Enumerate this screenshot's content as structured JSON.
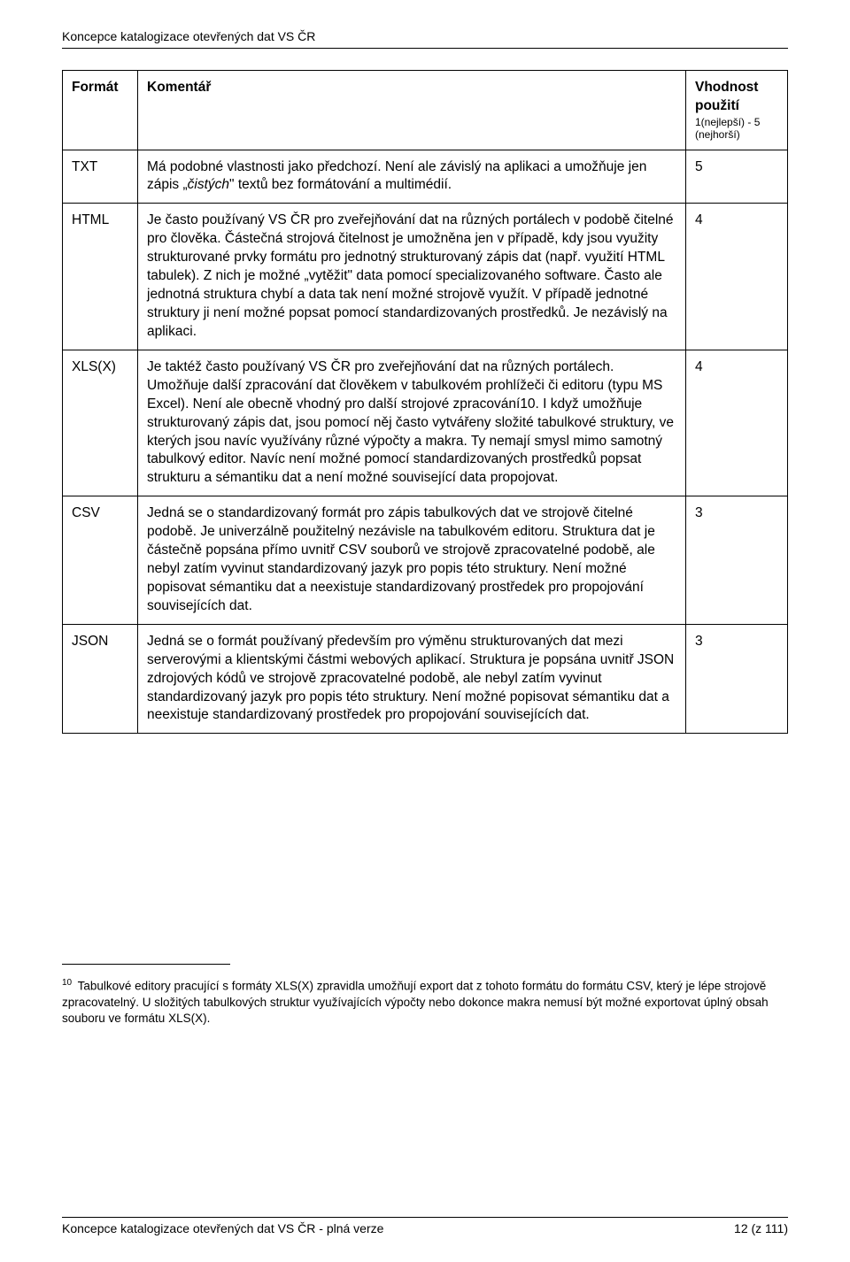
{
  "doc": {
    "header": "Koncepce katalogizace otevřených dat VS ČR",
    "footer_left": "Koncepce katalogizace otevřených dat VS ČR - plná verze",
    "footer_right": "12 (z 111)"
  },
  "table": {
    "headers": {
      "format": "Formát",
      "comment": "Komentář",
      "rating_title": "Vhodnost použití",
      "rating_sub1": "1(nejlepší) - 5",
      "rating_sub2": "(nejhorší)"
    },
    "rows": [
      {
        "format": "TXT",
        "comment_pre": "Má podobné vlastnosti jako předchozí. Není ale závislý na aplikaci a umožňuje jen zápis „",
        "comment_italic": "čistých",
        "comment_post": "\" textů bez formátování a multimédií.",
        "rating": "5"
      },
      {
        "format": "HTML",
        "comment": "Je často používaný VS ČR pro zveřejňování dat na různých portálech v podobě čitelné pro člověka. Částečná strojová čitelnost je umožněna jen v případě, kdy jsou využity strukturované prvky formátu pro jednotný strukturovaný zápis dat (např. využití HTML tabulek). Z nich je možné „vytěžit\" data pomocí specializovaného software. Často ale jednotná struktura chybí a data tak není možné strojově využít. V případě jednotné struktury ji není možné popsat pomocí standardizovaných prostředků. Je nezávislý na aplikaci.",
        "rating": "4"
      },
      {
        "format": "XLS(X)",
        "comment": "Je taktéž často používaný VS ČR pro zveřejňování dat na různých portálech. Umožňuje další zpracování dat člověkem v tabulkovém prohlížeči či editoru (typu MS Excel). Není ale obecně vhodný pro další strojové zpracování10. I když umožňuje strukturovaný zápis dat, jsou pomocí něj často vytvářeny složité tabulkové struktury, ve kterých jsou navíc využívány různé výpočty a makra. Ty nemají smysl mimo samotný tabulkový editor. Navíc není možné pomocí standardizovaných prostředků popsat strukturu a sémantiku dat a není možné související data propojovat.",
        "rating": "4"
      },
      {
        "format": "CSV",
        "comment": "Jedná se o standardizovaný formát pro zápis tabulkových dat ve strojově čitelné podobě. Je univerzálně použitelný nezávisle na tabulkovém editoru. Struktura dat je částečně popsána přímo uvnitř CSV souborů ve strojově zpracovatelné podobě, ale nebyl zatím vyvinut standardizovaný jazyk pro popis této struktury. Není možné popisovat sémantiku dat a neexistuje standardizovaný prostředek pro propojování souvisejících dat.",
        "rating": "3"
      },
      {
        "format": "JSON",
        "comment": "Jedná se o formát používaný především pro výměnu strukturovaných dat mezi serverovými a klientskými částmi webových aplikací. Struktura je popsána uvnitř JSON zdrojových kódů ve strojově zpracovatelné podobě, ale nebyl zatím vyvinut standardizovaný jazyk pro popis této struktury. Není možné popisovat sémantiku dat a neexistuje standardizovaný prostředek pro propojování souvisejících dat.",
        "rating": "3"
      }
    ]
  },
  "footnote": {
    "num": "10",
    "text": " Tabulkové editory pracující s formáty XLS(X) zpravidla umožňují export dat z tohoto formátu do formátu CSV, který je lépe strojově zpracovatelný. U složitých tabulkových struktur využívajících výpočty nebo dokonce makra nemusí být možné exportovat úplný obsah souboru ve formátu XLS(X)."
  }
}
